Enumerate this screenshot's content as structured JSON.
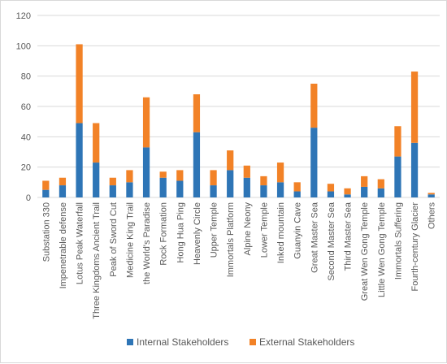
{
  "chart_data": {
    "type": "bar",
    "stacked": true,
    "title": "",
    "xlabel": "",
    "ylabel": "",
    "ylim": [
      0,
      120
    ],
    "yticks": [
      0,
      20,
      40,
      60,
      80,
      100,
      120
    ],
    "grid": "horizontal",
    "legend": "bottom",
    "categories": [
      "Substation 330",
      "Impenetrable defense",
      "Lotus Peak Waterfall",
      "Three Kingdoms Ancient Trail",
      "Peak of Sword Cut",
      "Medicine King Trail",
      "the World's Paradise",
      "Rock Formation",
      "Hong Hua Ping",
      "Heavenly Circle",
      "Upper Temple",
      "Immortals Platform",
      "Alpine Neony",
      "Lower Temple",
      "Inked mountain",
      "Guanyin Cave",
      "Great Master Sea",
      "Second Master Sea",
      "Third Master Sea",
      "Great Wen Gong Temple",
      "Little Wen Gong Temple",
      "Immortals Suffering",
      "Fourth-century Glacier",
      "Others"
    ],
    "series": [
      {
        "name": "Internal Stakeholders",
        "color": "#2e75b6",
        "values": [
          5,
          8,
          49,
          23,
          8,
          10,
          33,
          13,
          11,
          43,
          8,
          18,
          13,
          8,
          10,
          4,
          46,
          4,
          2,
          7,
          6,
          27,
          36,
          2
        ]
      },
      {
        "name": "External Stakeholders",
        "color": "#f28227",
        "values": [
          6,
          5,
          52,
          26,
          5,
          8,
          33,
          4,
          7,
          25,
          10,
          13,
          8,
          6,
          13,
          6,
          29,
          5,
          4,
          7,
          6,
          20,
          47,
          1
        ]
      }
    ]
  }
}
